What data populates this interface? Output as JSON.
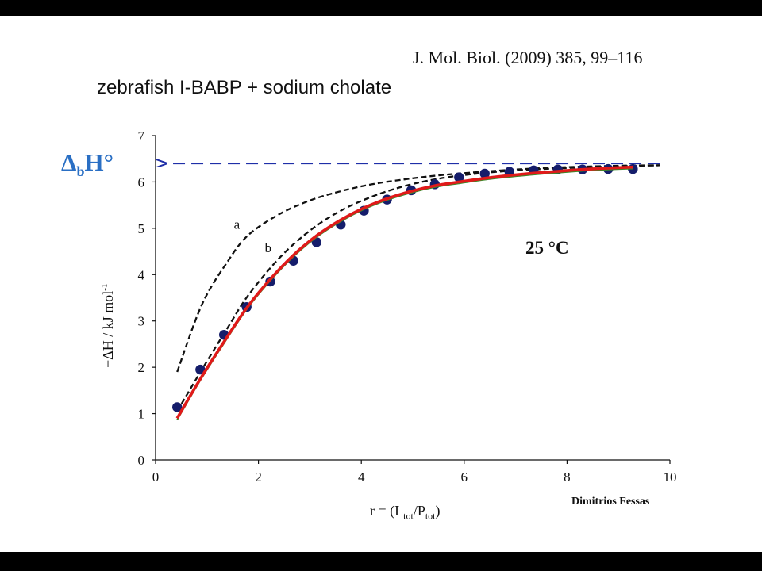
{
  "header": {
    "reference": "J. Mol. Biol. (2009) 385, 99–116",
    "subtitle": "zebrafish I-BABP  +  sodium cholate"
  },
  "annotations": {
    "temperature": "25  °C",
    "author": "Dimitrios Fessas",
    "dbh_main": "Δ",
    "dbh_sub": "b",
    "dbh_tail": "H°"
  },
  "chart_data": {
    "type": "scatter",
    "xlabel": "r = (Ltot/Ptot)",
    "xlabel_parts": {
      "pre": "r = (L",
      "sub1": "tot",
      "mid": "/P",
      "sub2": "tot",
      "post": ")"
    },
    "ylabel": "−ΔH / kJ mol-1",
    "ylabel_parts": {
      "pre": "−ΔH / kJ mol",
      "sup": "-1"
    },
    "xlim": [
      0,
      10
    ],
    "ylim": [
      0,
      7
    ],
    "x_ticks": [
      "0",
      "2",
      "4",
      "6",
      "8",
      "10"
    ],
    "y_ticks": [
      "0",
      "1",
      "2",
      "3",
      "4",
      "5",
      "6",
      "7"
    ],
    "grid": false,
    "colors": {
      "points": "#151d6b",
      "fit": "#e01a1a",
      "fit_under": "#3a8a2a",
      "dashed": "#111111",
      "asymptote": "#1f2fa8"
    },
    "series": [
      {
        "kind": "points",
        "x": [
          0.42,
          0.87,
          1.33,
          1.77,
          2.23,
          2.68,
          3.13,
          3.6,
          4.05,
          4.5,
          4.97,
          5.43,
          5.9,
          6.4,
          6.88,
          7.35,
          7.82,
          8.3,
          8.8,
          9.28
        ],
        "y": [
          1.14,
          1.95,
          2.7,
          3.3,
          3.85,
          4.3,
          4.7,
          5.08,
          5.38,
          5.62,
          5.82,
          5.95,
          6.1,
          6.18,
          6.22,
          6.25,
          6.27,
          6.27,
          6.28,
          6.28
        ]
      },
      {
        "kind": "fit",
        "x": [
          0.42,
          0.87,
          1.33,
          1.77,
          2.23,
          2.68,
          3.13,
          3.6,
          4.05,
          4.5,
          4.97,
          5.43,
          5.9,
          6.4,
          6.88,
          7.35,
          7.82,
          8.3,
          8.8,
          9.28
        ],
        "y": [
          0.9,
          1.75,
          2.55,
          3.28,
          3.9,
          4.42,
          4.84,
          5.18,
          5.44,
          5.64,
          5.8,
          5.92,
          6.0,
          6.08,
          6.14,
          6.19,
          6.23,
          6.27,
          6.3,
          6.32
        ]
      },
      {
        "name": "a",
        "kind": "dashed",
        "x": [
          0.42,
          0.9,
          1.4,
          1.8,
          2.4,
          3.0,
          3.6,
          4.2,
          4.8,
          5.4,
          6.0,
          7.0,
          8.0,
          9.0,
          9.8
        ],
        "y": [
          1.9,
          3.35,
          4.28,
          4.85,
          5.3,
          5.6,
          5.8,
          5.95,
          6.05,
          6.13,
          6.19,
          6.27,
          6.32,
          6.35,
          6.36
        ]
      },
      {
        "name": "b",
        "kind": "dashed",
        "x": [
          0.42,
          0.9,
          1.4,
          1.8,
          2.4,
          3.0,
          3.6,
          4.2,
          4.8,
          5.4,
          6.0,
          7.0,
          8.0,
          9.0,
          9.8
        ],
        "y": [
          1.05,
          1.95,
          2.85,
          3.55,
          4.35,
          4.95,
          5.38,
          5.68,
          5.9,
          6.05,
          6.15,
          6.25,
          6.3,
          6.34,
          6.36
        ]
      },
      {
        "kind": "asymptote",
        "x": [
          0.2,
          9.8
        ],
        "y": [
          6.4,
          6.4
        ]
      }
    ]
  }
}
